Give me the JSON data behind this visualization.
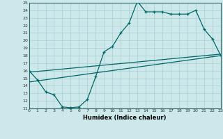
{
  "xlabel": "Humidex (Indice chaleur)",
  "bg_color": "#cce8ea",
  "grid_color": "#aacfd2",
  "line_color": "#006666",
  "xmin": 0,
  "xmax": 23,
  "ymin": 11,
  "ymax": 25,
  "curve1_x": [
    0,
    1,
    2,
    3,
    4,
    5,
    6,
    7,
    8,
    9,
    10,
    11,
    12,
    13,
    14,
    15,
    16,
    17,
    18,
    19,
    20,
    21,
    22,
    23
  ],
  "curve1_y": [
    16.0,
    14.8,
    13.2,
    12.8,
    11.2,
    11.1,
    11.2,
    12.2,
    15.2,
    18.5,
    19.2,
    21.0,
    22.3,
    25.2,
    23.8,
    23.8,
    23.8,
    23.5,
    23.5,
    23.5,
    24.0,
    21.5,
    20.2,
    18.0
  ],
  "curve2_x": [
    0,
    23
  ],
  "curve2_y": [
    14.5,
    18.0
  ],
  "curve3_x": [
    0,
    23
  ],
  "curve3_y": [
    15.8,
    18.2
  ]
}
